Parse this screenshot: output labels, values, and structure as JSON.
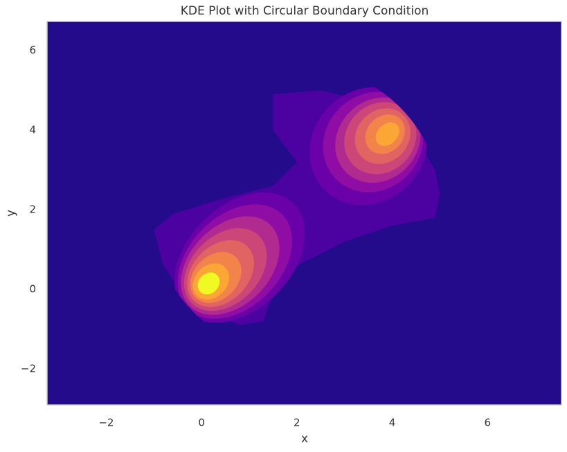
{
  "chart_data": {
    "type": "contour",
    "title": "KDE Plot with Circular Boundary Condition",
    "x_label": "x",
    "y_label": "y",
    "xlim": [
      -3.24,
      7.55
    ],
    "ylim": [
      -2.9,
      6.73
    ],
    "xticks": [
      {
        "value": -2,
        "label": "−2"
      },
      0,
      2,
      4,
      6
    ],
    "yticks": [
      {
        "value": -2,
        "label": "−2"
      },
      0,
      2,
      4,
      6
    ],
    "grid": false,
    "background_color": "#230b8b",
    "boundary": {
      "center_x": 2,
      "center_y": 2,
      "radius": 3.05
    },
    "levels": [
      {
        "color": "#4c02a1",
        "regions": [
          {
            "x": [
              -1,
              -0.6,
              0.5,
              1.5,
              2.0,
              1.5,
              1.5,
              2.5,
              3.2,
              4.0,
              4.6,
              4.9,
              5.0,
              4.9,
              4.0,
              3.0,
              2.0,
              1.5,
              1.3,
              0.8,
              0.2,
              -0.4,
              -0.8
            ],
            "y": [
              1.5,
              1.9,
              2.3,
              2.6,
              3.2,
              4.0,
              4.9,
              5.0,
              4.8,
              4.2,
              3.6,
              3.0,
              2.4,
              1.8,
              1.6,
              1.2,
              0.6,
              -0.1,
              -0.8,
              -0.9,
              -0.6,
              -0.1,
              0.6
            ]
          }
        ]
      },
      {
        "color": "#6a00a8",
        "regions": [
          {
            "cx": 0.8,
            "cy": 0.8,
            "rx": 1.6,
            "ry": 1.3,
            "angle": 45
          },
          {
            "cx": 3.5,
            "cy": 3.6,
            "rx": 1.3,
            "ry": 1.4,
            "angle": 45
          }
        ]
      },
      {
        "color": "#8f0da4",
        "regions": [
          {
            "cx": 0.7,
            "cy": 0.7,
            "rx": 1.4,
            "ry": 1.15,
            "angle": 45
          },
          {
            "cx": 3.6,
            "cy": 3.7,
            "rx": 1.1,
            "ry": 1.2,
            "angle": 45
          }
        ]
      },
      {
        "color": "#b12a90",
        "regions": [
          {
            "cx": 0.6,
            "cy": 0.6,
            "rx": 1.2,
            "ry": 1.0,
            "angle": 45
          },
          {
            "cx": 3.7,
            "cy": 3.75,
            "rx": 0.95,
            "ry": 1.0,
            "angle": 45
          }
        ]
      },
      {
        "color": "#cc4778",
        "regions": [
          {
            "cx": 0.5,
            "cy": 0.5,
            "rx": 1.0,
            "ry": 0.85,
            "angle": 45
          },
          {
            "cx": 3.75,
            "cy": 3.8,
            "rx": 0.8,
            "ry": 0.85,
            "angle": 45
          }
        ]
      },
      {
        "color": "#e16462",
        "regions": [
          {
            "cx": 0.4,
            "cy": 0.4,
            "rx": 0.8,
            "ry": 0.7,
            "angle": 45
          },
          {
            "cx": 3.8,
            "cy": 3.85,
            "rx": 0.62,
            "ry": 0.65,
            "angle": 45
          }
        ]
      },
      {
        "color": "#f2844b",
        "regions": [
          {
            "cx": 0.3,
            "cy": 0.3,
            "rx": 0.6,
            "ry": 0.55,
            "angle": 45
          },
          {
            "cx": 3.85,
            "cy": 3.9,
            "rx": 0.45,
            "ry": 0.45,
            "angle": 45
          }
        ]
      },
      {
        "color": "#fca636",
        "regions": [
          {
            "cx": 0.2,
            "cy": 0.2,
            "rx": 0.42,
            "ry": 0.4,
            "angle": 45
          },
          {
            "cx": 3.9,
            "cy": 3.9,
            "rx": 0.28,
            "ry": 0.25,
            "angle": 45
          }
        ]
      },
      {
        "color": "#f0f921",
        "regions": [
          {
            "cx": 0.15,
            "cy": 0.15,
            "rx": 0.25,
            "ry": 0.25,
            "angle": 45
          }
        ]
      }
    ]
  }
}
